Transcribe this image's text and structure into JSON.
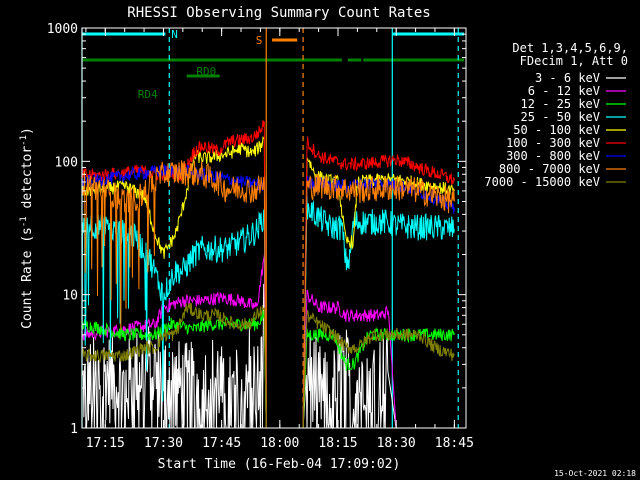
{
  "chart_data": {
    "type": "line",
    "title": "RHESSI Observing Summary Count Rates",
    "xlabel": "Start Time (16-Feb-04 17:09:02)",
    "ylabel": "Count Rate (s^-1 detector^-1)",
    "ylabel_main": "Count Rate (s",
    "ylabel_sup1": "-1",
    "ylabel_mid": " detector",
    "ylabel_sup2": "-1",
    "ylabel_end": ")",
    "yscale": "log",
    "ylim": [
      1,
      1000
    ],
    "xlim_minutes": [
      1029.0,
      1128.0
    ],
    "x_ticks": [
      {
        "label": "17:15",
        "min": 1035
      },
      {
        "label": "17:30",
        "min": 1050
      },
      {
        "label": "17:45",
        "min": 1065
      },
      {
        "label": "18:00",
        "min": 1080
      },
      {
        "label": "18:15",
        "min": 1095
      },
      {
        "label": "18:30",
        "min": 1110
      },
      {
        "label": "18:45",
        "min": 1125
      }
    ],
    "y_ticks": [
      {
        "label": "1",
        "value": 1
      },
      {
        "label": "10",
        "value": 10
      },
      {
        "label": "100",
        "value": 100
      },
      {
        "label": "1000",
        "value": 1000
      }
    ],
    "legend_header": [
      "Det 1,3,4,5,6,9,",
      "FDecim 1, Att 0"
    ],
    "legend_position": "right",
    "series": [
      {
        "name": "3 - 6 keV",
        "color": "#ffffff",
        "points": [
          [
            1029,
            2
          ],
          [
            1035,
            2.5
          ],
          [
            1040,
            2
          ],
          [
            1045,
            3
          ],
          [
            1050,
            2.5
          ],
          [
            1055,
            2
          ],
          [
            1060,
            2
          ],
          [
            1064,
            2.5
          ],
          [
            1066,
            1.5
          ],
          [
            1070,
            2
          ],
          [
            1072,
            3
          ],
          [
            1075,
            2
          ],
          [
            1076,
            8
          ],
          [
            1076.5,
            1
          ],
          [
            1086,
            1
          ],
          [
            1087,
            3
          ],
          [
            1090,
            2
          ],
          [
            1093,
            1.5
          ],
          [
            1096,
            3
          ],
          [
            1099,
            2
          ],
          [
            1102,
            3
          ],
          [
            1105,
            2.5
          ],
          [
            1108,
            2.5
          ],
          [
            1110,
            1
          ],
          [
            1128,
            1
          ]
        ]
      },
      {
        "name": "6 - 12 keV",
        "color": "#ff00ff",
        "points": [
          [
            1029,
            5
          ],
          [
            1040,
            5.5
          ],
          [
            1048,
            6
          ],
          [
            1050,
            8
          ],
          [
            1055,
            9
          ],
          [
            1060,
            9
          ],
          [
            1065,
            9.5
          ],
          [
            1070,
            9
          ],
          [
            1074,
            8
          ],
          [
            1075,
            12
          ],
          [
            1076,
            20
          ],
          [
            1076.5,
            1
          ],
          [
            1086,
            1
          ],
          [
            1087,
            10
          ],
          [
            1090,
            8
          ],
          [
            1095,
            8
          ],
          [
            1097,
            7
          ],
          [
            1099,
            7
          ],
          [
            1102,
            7
          ],
          [
            1106,
            7
          ],
          [
            1108,
            7.5
          ],
          [
            1110,
            1
          ],
          [
            1128,
            1
          ]
        ]
      },
      {
        "name": "12 - 25 keV",
        "color": "#00ff00",
        "points": [
          [
            1029,
            6
          ],
          [
            1035,
            5.5
          ],
          [
            1040,
            5
          ],
          [
            1045,
            5
          ],
          [
            1048,
            5
          ],
          [
            1052,
            6
          ],
          [
            1058,
            5.5
          ],
          [
            1062,
            6
          ],
          [
            1066,
            6
          ],
          [
            1070,
            6
          ],
          [
            1074,
            6
          ],
          [
            1076,
            7
          ],
          [
            1076.5,
            1
          ],
          [
            1086,
            1
          ],
          [
            1087,
            5
          ],
          [
            1090,
            5
          ],
          [
            1094,
            5
          ],
          [
            1097,
            3
          ],
          [
            1099,
            3
          ],
          [
            1103,
            5
          ],
          [
            1108,
            5
          ],
          [
            1112,
            5
          ],
          [
            1118,
            5
          ],
          [
            1122,
            5
          ],
          [
            1125,
            5
          ]
        ]
      },
      {
        "name": "25 - 50 keV",
        "color": "#00ffff",
        "points": [
          [
            1029,
            35
          ],
          [
            1034,
            32
          ],
          [
            1038,
            30
          ],
          [
            1042,
            28
          ],
          [
            1046,
            20
          ],
          [
            1050,
            10
          ],
          [
            1053,
            15
          ],
          [
            1055,
            15
          ],
          [
            1058,
            20
          ],
          [
            1060,
            22
          ],
          [
            1062,
            22
          ],
          [
            1066,
            22
          ],
          [
            1070,
            25
          ],
          [
            1074,
            30
          ],
          [
            1076,
            40
          ],
          [
            1076.5,
            1
          ],
          [
            1086,
            1
          ],
          [
            1087,
            45
          ],
          [
            1090,
            38
          ],
          [
            1093,
            32
          ],
          [
            1096,
            32
          ],
          [
            1097,
            18
          ],
          [
            1098,
            18
          ],
          [
            1099,
            35
          ],
          [
            1103,
            35
          ],
          [
            1107,
            35
          ],
          [
            1110,
            33
          ],
          [
            1115,
            32
          ],
          [
            1120,
            32
          ],
          [
            1125,
            31
          ]
        ]
      },
      {
        "name": "50 - 100 keV",
        "color": "#ffff00",
        "points": [
          [
            1029,
            60
          ],
          [
            1035,
            62
          ],
          [
            1040,
            65
          ],
          [
            1045,
            55
          ],
          [
            1048,
            28
          ],
          [
            1050,
            20
          ],
          [
            1053,
            28
          ],
          [
            1055,
            45
          ],
          [
            1058,
            110
          ],
          [
            1061,
            105
          ],
          [
            1064,
            110
          ],
          [
            1067,
            115
          ],
          [
            1070,
            125
          ],
          [
            1073,
            115
          ],
          [
            1075,
            130
          ],
          [
            1076,
            150
          ],
          [
            1076.5,
            1
          ],
          [
            1086,
            1
          ],
          [
            1087,
            110
          ],
          [
            1089,
            80
          ],
          [
            1092,
            72
          ],
          [
            1095,
            70
          ],
          [
            1097,
            25
          ],
          [
            1099,
            25
          ],
          [
            1100,
            70
          ],
          [
            1104,
            72
          ],
          [
            1108,
            73
          ],
          [
            1112,
            72
          ],
          [
            1116,
            68
          ],
          [
            1120,
            65
          ],
          [
            1125,
            60
          ]
        ]
      },
      {
        "name": "100 - 300 keV",
        "color": "#ff0000",
        "points": [
          [
            1029,
            80
          ],
          [
            1033,
            78
          ],
          [
            1036,
            80
          ],
          [
            1040,
            82
          ],
          [
            1044,
            85
          ],
          [
            1048,
            80
          ],
          [
            1052,
            82
          ],
          [
            1055,
            80
          ],
          [
            1058,
            120
          ],
          [
            1060,
            130
          ],
          [
            1062,
            125
          ],
          [
            1064,
            120
          ],
          [
            1067,
            140
          ],
          [
            1070,
            145
          ],
          [
            1073,
            150
          ],
          [
            1075,
            170
          ],
          [
            1076,
            200
          ],
          [
            1076.5,
            1
          ],
          [
            1086,
            1
          ],
          [
            1087,
            140
          ],
          [
            1090,
            110
          ],
          [
            1094,
            100
          ],
          [
            1097,
            95
          ],
          [
            1100,
            95
          ],
          [
            1103,
            97
          ],
          [
            1107,
            100
          ],
          [
            1110,
            103
          ],
          [
            1114,
            95
          ],
          [
            1118,
            85
          ],
          [
            1122,
            78
          ],
          [
            1125,
            72
          ]
        ]
      },
      {
        "name": "300 - 800 keV",
        "color": "#0000ff",
        "points": [
          [
            1029,
            70
          ],
          [
            1034,
            72
          ],
          [
            1040,
            78
          ],
          [
            1045,
            82
          ],
          [
            1050,
            85
          ],
          [
            1055,
            85
          ],
          [
            1060,
            80
          ],
          [
            1065,
            75
          ],
          [
            1070,
            70
          ],
          [
            1074,
            68
          ],
          [
            1076,
            65
          ],
          [
            1076.5,
            1
          ],
          [
            1086,
            1
          ],
          [
            1087,
            70
          ],
          [
            1092,
            68
          ],
          [
            1097,
            65
          ],
          [
            1102,
            68
          ],
          [
            1107,
            68
          ],
          [
            1112,
            65
          ],
          [
            1117,
            58
          ],
          [
            1122,
            50
          ],
          [
            1125,
            45
          ]
        ]
      },
      {
        "name": "800 - 7000 keV",
        "color": "#ff8000",
        "points": [
          [
            1029,
            70
          ],
          [
            1032,
            65
          ],
          [
            1035,
            60
          ],
          [
            1038,
            55
          ],
          [
            1041,
            50
          ],
          [
            1044,
            55
          ],
          [
            1047,
            70
          ],
          [
            1050,
            80
          ],
          [
            1055,
            83
          ],
          [
            1060,
            80
          ],
          [
            1064,
            70
          ],
          [
            1066,
            62
          ],
          [
            1070,
            63
          ],
          [
            1073,
            60
          ],
          [
            1075,
            65
          ],
          [
            1076,
            70
          ],
          [
            1076.5,
            1
          ],
          [
            1086,
            1
          ],
          [
            1087,
            65
          ],
          [
            1092,
            65
          ],
          [
            1097,
            62
          ],
          [
            1100,
            60
          ],
          [
            1104,
            62
          ],
          [
            1108,
            63
          ],
          [
            1112,
            63
          ],
          [
            1116,
            60
          ],
          [
            1120,
            55
          ],
          [
            1125,
            50
          ]
        ]
      },
      {
        "name": "7000 - 15000 keV",
        "color": "#808000",
        "points": [
          [
            1029,
            3.5
          ],
          [
            1035,
            3.5
          ],
          [
            1040,
            3.5
          ],
          [
            1045,
            4
          ],
          [
            1048,
            4
          ],
          [
            1050,
            5
          ],
          [
            1053,
            5
          ],
          [
            1056,
            8
          ],
          [
            1060,
            7
          ],
          [
            1064,
            7
          ],
          [
            1068,
            6
          ],
          [
            1072,
            6
          ],
          [
            1074,
            7
          ],
          [
            1076,
            8
          ],
          [
            1076.5,
            1
          ],
          [
            1086,
            1
          ],
          [
            1087,
            7
          ],
          [
            1090,
            6
          ],
          [
            1094,
            5
          ],
          [
            1097,
            4
          ],
          [
            1100,
            4
          ],
          [
            1104,
            5
          ],
          [
            1108,
            5
          ],
          [
            1112,
            5
          ],
          [
            1116,
            5
          ],
          [
            1120,
            4
          ],
          [
            1125,
            3.5
          ]
        ]
      }
    ],
    "vlines": [
      {
        "min": 1029.0,
        "color": "#00ffff",
        "style": "solid"
      },
      {
        "min": 1051.5,
        "color": "#00ffff",
        "style": "dashed"
      },
      {
        "min": 1076.5,
        "color": "#ff8000",
        "style": "solid"
      },
      {
        "min": 1086.0,
        "color": "#ff8000",
        "style": "dashed"
      },
      {
        "min": 1109.0,
        "color": "#00ffff",
        "style": "solid"
      },
      {
        "min": 1126.0,
        "color": "#00ffff",
        "style": "dashed"
      }
    ],
    "flag_bars": [
      {
        "label": "N",
        "color": "#00ffff",
        "ratio": 0.985,
        "segments": [
          [
            1029.0,
            1050.5
          ],
          [
            1109.0,
            1127.5
          ]
        ],
        "label_min": 1052.0,
        "label_side": "right"
      },
      {
        "label": "S",
        "color": "#ff8000",
        "ratio": 0.97,
        "segments": [
          [
            1078.0,
            1084.5
          ]
        ],
        "label_min": 1075.5,
        "label_side": "left"
      },
      {
        "label": "",
        "color": "#008000",
        "ratio": 0.92,
        "segments": [
          [
            1029.0,
            1096.0
          ],
          [
            1097.5,
            1101.0
          ],
          [
            1101.5,
            1127.5
          ]
        ],
        "label_min": null,
        "label_side": "none"
      },
      {
        "label": "RD0",
        "color": "#008000",
        "ratio": 0.88,
        "segments": [
          [
            1056.0,
            1064.5
          ]
        ],
        "label_min": 1058.5,
        "label_side": "above"
      },
      {
        "label": "RD4",
        "color": "#008000",
        "ratio": 0.855,
        "segments": [],
        "label_min": 1048.5,
        "label_side": "left"
      }
    ]
  },
  "footer": {
    "timestamp": "15-Oct-2021 02:18"
  }
}
